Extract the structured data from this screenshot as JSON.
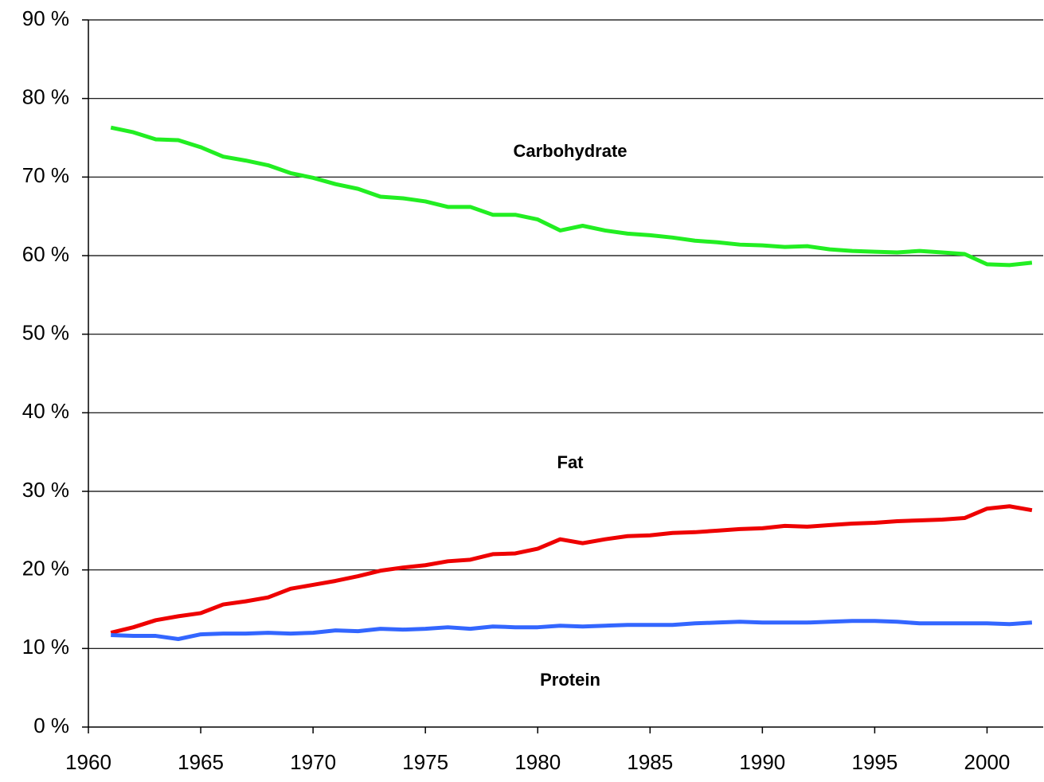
{
  "chart_data": {
    "type": "line",
    "x": [
      1961,
      1962,
      1963,
      1964,
      1965,
      1966,
      1967,
      1968,
      1969,
      1970,
      1971,
      1972,
      1973,
      1974,
      1975,
      1976,
      1977,
      1978,
      1979,
      1980,
      1981,
      1982,
      1983,
      1984,
      1985,
      1986,
      1987,
      1988,
      1989,
      1990,
      1991,
      1992,
      1993,
      1994,
      1995,
      1996,
      1997,
      1998,
      1999,
      2000,
      2001,
      2002
    ],
    "series": [
      {
        "name": "Carbohydrate",
        "color": "#22ee22",
        "values": [
          76.3,
          75.7,
          74.8,
          74.7,
          73.8,
          72.6,
          72.1,
          71.5,
          70.5,
          69.9,
          69.1,
          68.5,
          67.5,
          67.3,
          66.9,
          66.2,
          66.2,
          65.2,
          65.2,
          64.6,
          63.2,
          63.8,
          63.2,
          62.8,
          62.6,
          62.3,
          61.9,
          61.7,
          61.4,
          61.3,
          61.1,
          61.2,
          60.8,
          60.6,
          60.5,
          60.4,
          60.6,
          60.4,
          60.2,
          58.9,
          58.8,
          59.1
        ]
      },
      {
        "name": "Fat",
        "color": "#ee0000",
        "values": [
          12.0,
          12.7,
          13.6,
          14.1,
          14.5,
          15.6,
          16.0,
          16.5,
          17.6,
          18.1,
          18.6,
          19.2,
          19.9,
          20.3,
          20.6,
          21.1,
          21.3,
          22.0,
          22.1,
          22.7,
          23.9,
          23.4,
          23.9,
          24.3,
          24.4,
          24.7,
          24.8,
          25.0,
          25.2,
          25.3,
          25.6,
          25.5,
          25.7,
          25.9,
          26.0,
          26.2,
          26.3,
          26.4,
          26.6,
          27.8,
          28.1,
          27.6
        ]
      },
      {
        "name": "Protein",
        "color": "#3366ff",
        "values": [
          11.7,
          11.6,
          11.6,
          11.2,
          11.8,
          11.9,
          11.9,
          12.0,
          11.9,
          12.0,
          12.3,
          12.2,
          12.5,
          12.4,
          12.5,
          12.7,
          12.5,
          12.8,
          12.7,
          12.7,
          12.9,
          12.8,
          12.9,
          13.0,
          13.0,
          13.0,
          13.2,
          13.3,
          13.4,
          13.3,
          13.3,
          13.3,
          13.4,
          13.5,
          13.5,
          13.4,
          13.2,
          13.2,
          13.2,
          13.2,
          13.1,
          13.3
        ]
      }
    ],
    "xlim": [
      1960,
      2002.5
    ],
    "xticks": [
      1960,
      1965,
      1970,
      1975,
      1980,
      1985,
      1990,
      1995,
      2000
    ],
    "ylim": [
      0,
      90
    ],
    "yticks": [
      {
        "value": 0,
        "label": "0 %"
      },
      {
        "value": 10,
        "label": "10 %"
      },
      {
        "value": 20,
        "label": "20 %"
      },
      {
        "value": 30,
        "label": "30 %"
      },
      {
        "value": 40,
        "label": "40 %"
      },
      {
        "value": 50,
        "label": "50 %"
      },
      {
        "value": 60,
        "label": "60 %"
      },
      {
        "value": 70,
        "label": "70 %"
      },
      {
        "value": 80,
        "label": "80 %"
      },
      {
        "value": 90,
        "label": "90 %"
      }
    ],
    "grid": true
  }
}
